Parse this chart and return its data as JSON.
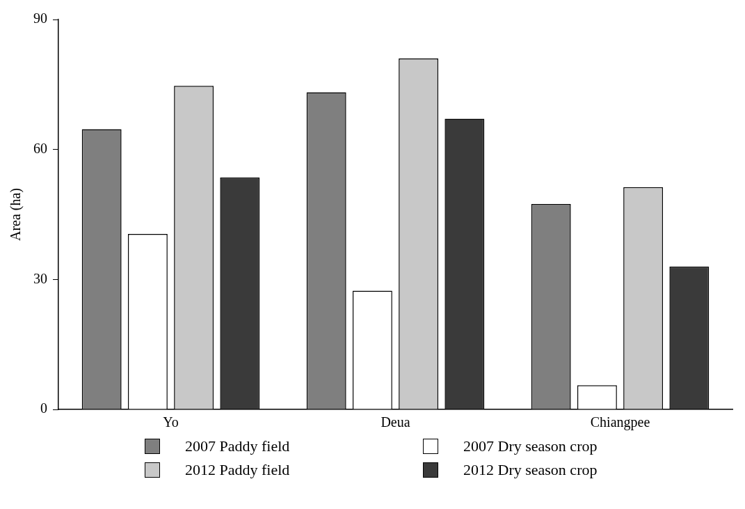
{
  "chart_data": {
    "type": "bar",
    "ylabel": "Area (ha)",
    "categories": [
      "Yo",
      "Deua",
      "Chiangpee"
    ],
    "series": [
      {
        "name": "2007 Paddy field",
        "color": "#7f7f7f",
        "values": [
          64.7,
          73.2,
          47.4
        ]
      },
      {
        "name": "2007 Dry season crop",
        "color": "#ffffff",
        "values": [
          40.5,
          27.4,
          5.6
        ]
      },
      {
        "name": "2012 Paddy field",
        "color": "#c8c8c8",
        "values": [
          74.7,
          81,
          51.3
        ]
      },
      {
        "name": "2012 Dry season crop",
        "color": "#3a3a3a",
        "values": [
          53.5,
          67.1,
          33
        ]
      }
    ],
    "ylim": [
      0,
      90
    ],
    "yticks": [
      0,
      30,
      60,
      90
    ],
    "grid": false,
    "legend": "bottom"
  }
}
